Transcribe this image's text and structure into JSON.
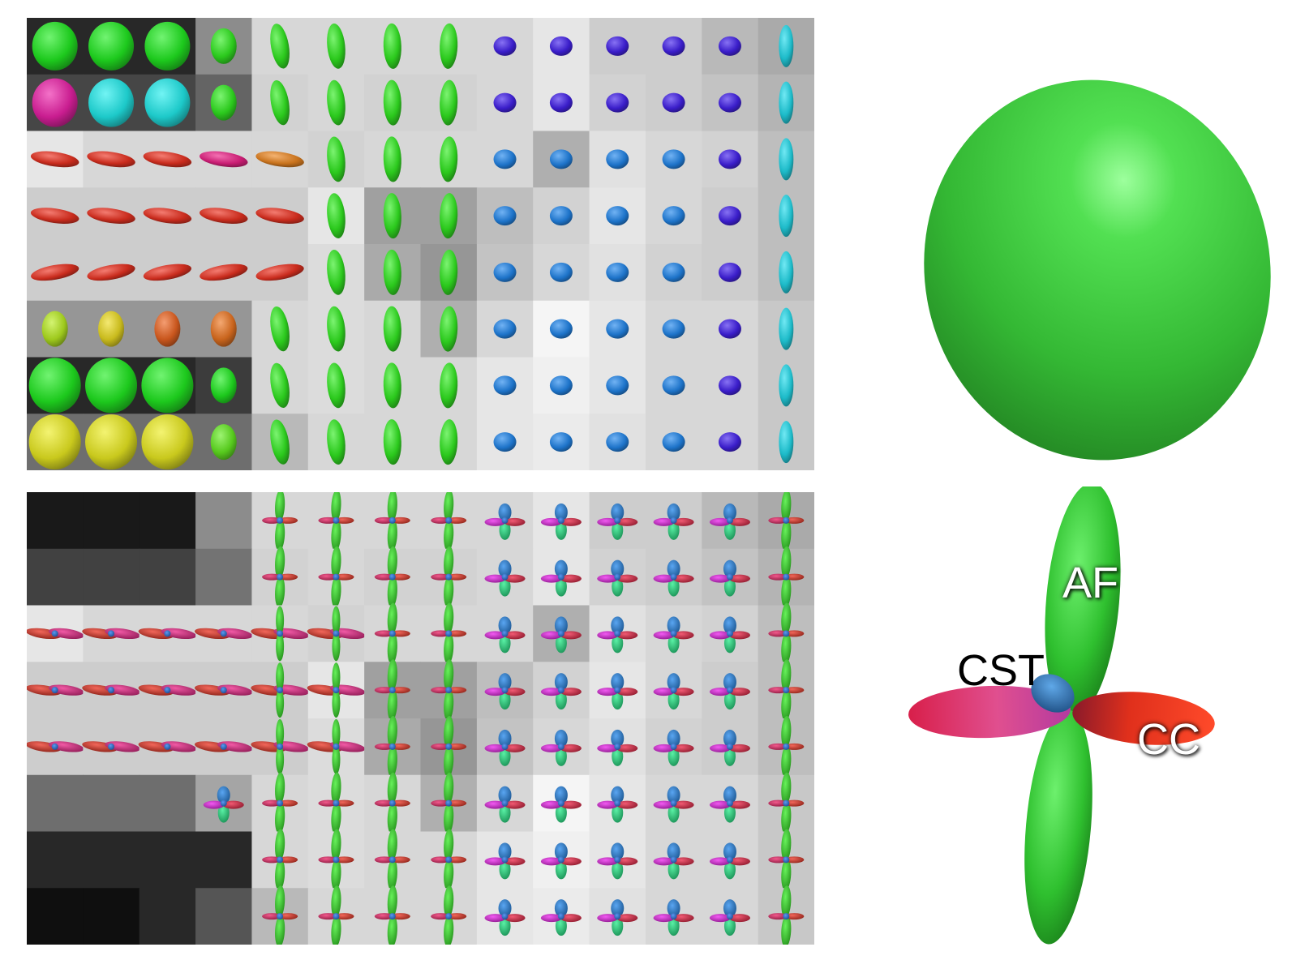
{
  "labels": {
    "af": "AF",
    "cst": "CST",
    "cc": "CC"
  },
  "colors": {
    "af": "#2ecc2e",
    "cst": "#e0306a",
    "cc": "#d42a1a",
    "crossing": "#2a6fb0",
    "single_tensor": "#3bc23b"
  },
  "grid": {
    "rows": 8,
    "cols": 14
  }
}
